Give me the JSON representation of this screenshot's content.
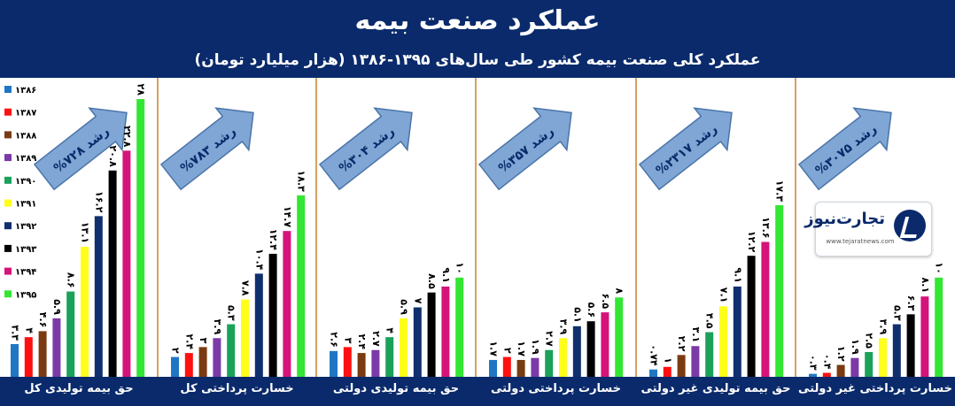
{
  "header": {
    "title": "عملکرد صنعت بیمه",
    "subtitle": "عملکرد کلی صنعت بیمه کشور طی سال‌های ۱۳۹۵-۱۳۸۶ (هزار میلیارد تومان)"
  },
  "logo": {
    "text": "تجارت‌نیوز",
    "url": "www.tejaratnews.com"
  },
  "chart_data": {
    "type": "bar",
    "categories": [
      "۱۳۸۶",
      "۱۳۸۷",
      "۱۳۸۸",
      "۱۳۸۹",
      "۱۳۹۰",
      "۱۳۹۱",
      "۱۳۹۲",
      "۱۳۹۳",
      "۱۳۹۴",
      "۱۳۹۵"
    ],
    "colors": [
      "#1f77c4",
      "#ff1010",
      "#7a3b12",
      "#7b3aa8",
      "#1aa15a",
      "#ffff1a",
      "#0f2f6e",
      "#000000",
      "#d6137a",
      "#33e633"
    ],
    "legend_position": "left",
    "panels": [
      {
        "label": "حق بیمه تولیدی کل",
        "growth": "رشد ۷۲۸%",
        "values": [
          3.3,
          4,
          4.6,
          5.9,
          8.6,
          13.1,
          16.2,
          20.8,
          22.8,
          28
        ],
        "value_labels": [
          "۳.۳",
          "۴",
          "۴.۶",
          "۵.۹",
          "۸.۶",
          "۱۳.۱",
          "۱۶.۲",
          "۲۰.۸",
          "۲۲.۸",
          "۲۸"
        ]
      },
      {
        "label": "خسارت پرداختی کل",
        "growth": "رشد ۷۸۳%",
        "values": [
          2,
          2.4,
          3,
          3.9,
          5.3,
          7.8,
          10.4,
          12.4,
          14.7,
          18.3
        ],
        "value_labels": [
          "۲",
          "۲.۴",
          "۳",
          "۳.۹",
          "۵.۳",
          "۷.۸",
          "۱۰.۴",
          "۱۲.۴",
          "۱۴.۷",
          "۱۸.۳"
        ]
      },
      {
        "label": "حق بیمه تولیدی دولتی",
        "growth": "رشد ۳۰۴%",
        "values": [
          2.6,
          3,
          2.4,
          2.7,
          4,
          5.9,
          7,
          8.5,
          9.1,
          10
        ],
        "value_labels": [
          "۲.۶",
          "۳",
          "۲.۴",
          "۲.۷",
          "۴",
          "۵.۹",
          "۷",
          "۸.۵",
          "۹.۱",
          "۱۰"
        ]
      },
      {
        "label": "خسارت پرداختی دولتی",
        "growth": "رشد ۳۵۷%",
        "values": [
          1.7,
          2,
          1.7,
          1.9,
          2.7,
          3.9,
          5.1,
          5.6,
          6.5,
          8
        ],
        "value_labels": [
          "۱.۷",
          "۲",
          "۱.۷",
          "۱.۹",
          "۲.۷",
          "۳.۹",
          "۵.۱",
          "۵.۶",
          "۶.۵",
          "۸"
        ]
      },
      {
        "label": "حق بیمه تولیدی غیر دولتی",
        "growth": "رشد ۲۳۱۷%",
        "values": [
          0.74,
          1,
          2.2,
          3.1,
          4.5,
          7.1,
          9.1,
          12.2,
          13.6,
          17.3
        ],
        "value_labels": [
          "۰.۷۴",
          "۱",
          "۲.۲",
          "۳.۱",
          "۴.۵",
          "۷.۱",
          "۹.۱",
          "۱۲.۲",
          "۱۳.۶",
          "۱۷.۳"
        ]
      },
      {
        "label": "خسارت پرداختی غیر دولتی",
        "growth": "رشد ۳۰۷۵%",
        "values": [
          0.3,
          0.4,
          1.2,
          1.9,
          2.5,
          3.9,
          5.3,
          6.3,
          8.1,
          10
        ],
        "value_labels": [
          "۰.۳",
          "۰.۴",
          "۱.۲",
          "۱.۹",
          "۲.۵",
          "۳.۹",
          "۵.۳",
          "۶.۳",
          "۸.۱",
          "۱۰"
        ]
      }
    ]
  }
}
